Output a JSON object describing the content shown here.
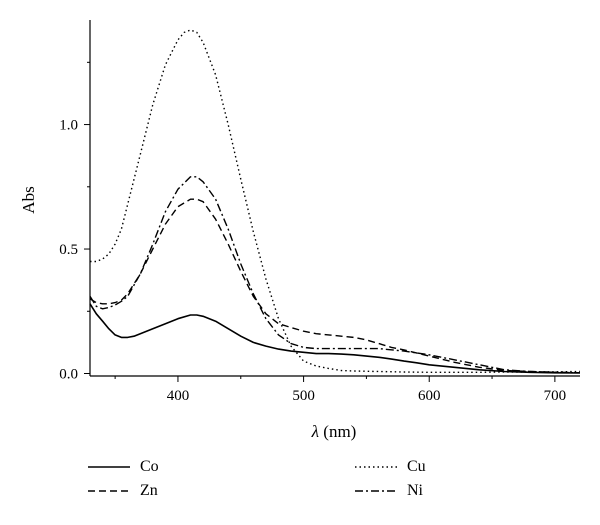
{
  "chart_data": {
    "type": "line",
    "xlabel_var": "λ",
    "xlabel_unit": " (nm)",
    "ylabel": "Abs",
    "xlim": [
      330,
      720
    ],
    "ylim": [
      -0.01,
      1.42
    ],
    "xticks": [
      400,
      500,
      600,
      700
    ],
    "yticks": [
      0.0,
      0.5,
      1.0
    ],
    "ytick_labels": [
      "0.0",
      "0.5",
      "1.0"
    ],
    "grid": false,
    "legend_position": "bottom",
    "series": [
      {
        "name": "Co",
        "style": "solid",
        "x": [
          330,
          335,
          340,
          345,
          350,
          355,
          360,
          365,
          370,
          380,
          390,
          400,
          410,
          415,
          420,
          430,
          440,
          450,
          460,
          470,
          480,
          490,
          500,
          510,
          520,
          530,
          540,
          550,
          560,
          570,
          580,
          590,
          600,
          620,
          640,
          660,
          680,
          700,
          720
        ],
        "y": [
          0.28,
          0.24,
          0.21,
          0.18,
          0.155,
          0.145,
          0.145,
          0.15,
          0.16,
          0.18,
          0.2,
          0.22,
          0.235,
          0.235,
          0.23,
          0.21,
          0.18,
          0.15,
          0.125,
          0.11,
          0.098,
          0.09,
          0.085,
          0.08,
          0.08,
          0.078,
          0.075,
          0.07,
          0.065,
          0.058,
          0.05,
          0.043,
          0.035,
          0.025,
          0.015,
          0.008,
          0.005,
          0.003,
          0.002
        ]
      },
      {
        "name": "Zn",
        "style": "dashed",
        "x": [
          330,
          335,
          340,
          345,
          350,
          355,
          360,
          370,
          380,
          390,
          400,
          410,
          415,
          420,
          430,
          440,
          450,
          460,
          470,
          480,
          490,
          500,
          510,
          520,
          530,
          540,
          550,
          560,
          570,
          580,
          600,
          620,
          640,
          660,
          680,
          700,
          720
        ],
        "y": [
          0.3,
          0.285,
          0.28,
          0.28,
          0.285,
          0.295,
          0.32,
          0.4,
          0.5,
          0.6,
          0.67,
          0.7,
          0.7,
          0.69,
          0.62,
          0.52,
          0.41,
          0.31,
          0.24,
          0.2,
          0.185,
          0.17,
          0.16,
          0.155,
          0.15,
          0.145,
          0.135,
          0.12,
          0.105,
          0.095,
          0.07,
          0.045,
          0.025,
          0.012,
          0.008,
          0.005,
          0.003
        ]
      },
      {
        "name": "Cu",
        "style": "dotted",
        "x": [
          330,
          335,
          340,
          345,
          350,
          355,
          360,
          370,
          380,
          390,
          400,
          405,
          410,
          415,
          420,
          430,
          440,
          450,
          460,
          470,
          480,
          490,
          500,
          510,
          520,
          530,
          540,
          560,
          580,
          600,
          620,
          640,
          660,
          680,
          700,
          720
        ],
        "y": [
          0.45,
          0.45,
          0.46,
          0.48,
          0.52,
          0.58,
          0.68,
          0.88,
          1.08,
          1.24,
          1.34,
          1.37,
          1.38,
          1.37,
          1.33,
          1.2,
          1.0,
          0.78,
          0.57,
          0.38,
          0.22,
          0.11,
          0.05,
          0.03,
          0.02,
          0.012,
          0.01,
          0.008,
          0.006,
          0.005,
          0.005,
          0.005,
          0.006,
          0.006,
          0.007,
          0.008
        ]
      },
      {
        "name": "Ni",
        "style": "dashdot",
        "x": [
          330,
          335,
          340,
          345,
          350,
          355,
          360,
          370,
          380,
          390,
          400,
          410,
          415,
          420,
          430,
          440,
          450,
          460,
          470,
          480,
          490,
          500,
          510,
          520,
          530,
          540,
          560,
          580,
          600,
          620,
          640,
          660,
          680,
          700,
          720
        ],
        "y": [
          0.31,
          0.27,
          0.26,
          0.265,
          0.275,
          0.29,
          0.31,
          0.4,
          0.52,
          0.65,
          0.74,
          0.79,
          0.79,
          0.77,
          0.7,
          0.58,
          0.44,
          0.32,
          0.22,
          0.155,
          0.12,
          0.105,
          0.1,
          0.1,
          0.1,
          0.1,
          0.1,
          0.09,
          0.075,
          0.055,
          0.035,
          0.015,
          0.008,
          0.005,
          0.003
        ]
      }
    ]
  }
}
